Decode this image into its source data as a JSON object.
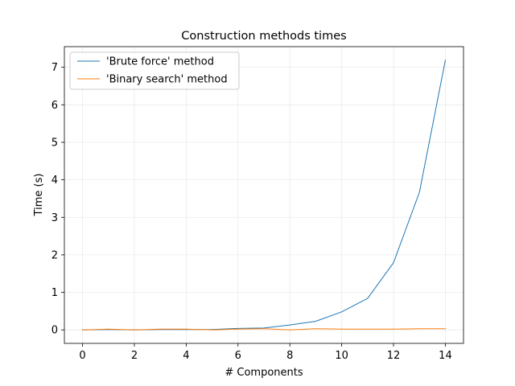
{
  "chart_data": {
    "type": "line",
    "title": "Construction methods times",
    "xlabel": "# Components",
    "ylabel": "Time (s)",
    "xlim": [
      -0.7,
      14.7
    ],
    "ylim": [
      -0.36,
      7.55
    ],
    "xticks": [
      0,
      2,
      4,
      6,
      8,
      10,
      12,
      14
    ],
    "yticks": [
      0,
      1,
      2,
      3,
      4,
      5,
      6,
      7
    ],
    "grid": true,
    "legend_position": "upper-left",
    "x": [
      0,
      1,
      2,
      3,
      4,
      5,
      6,
      7,
      8,
      9,
      10,
      11,
      12,
      13,
      14
    ],
    "series": [
      {
        "name": "'Brute force' method",
        "color": "#1f77b4",
        "values": [
          0.0,
          0.01,
          0.0,
          0.01,
          0.01,
          0.01,
          0.04,
          0.05,
          0.13,
          0.23,
          0.48,
          0.84,
          1.79,
          3.67,
          7.19
        ]
      },
      {
        "name": "'Binary search' method",
        "color": "#ff7f0e",
        "values": [
          0.0,
          0.02,
          0.0,
          0.02,
          0.02,
          0.0,
          0.02,
          0.03,
          0.0,
          0.03,
          0.02,
          0.02,
          0.02,
          0.03,
          0.03
        ]
      }
    ]
  }
}
